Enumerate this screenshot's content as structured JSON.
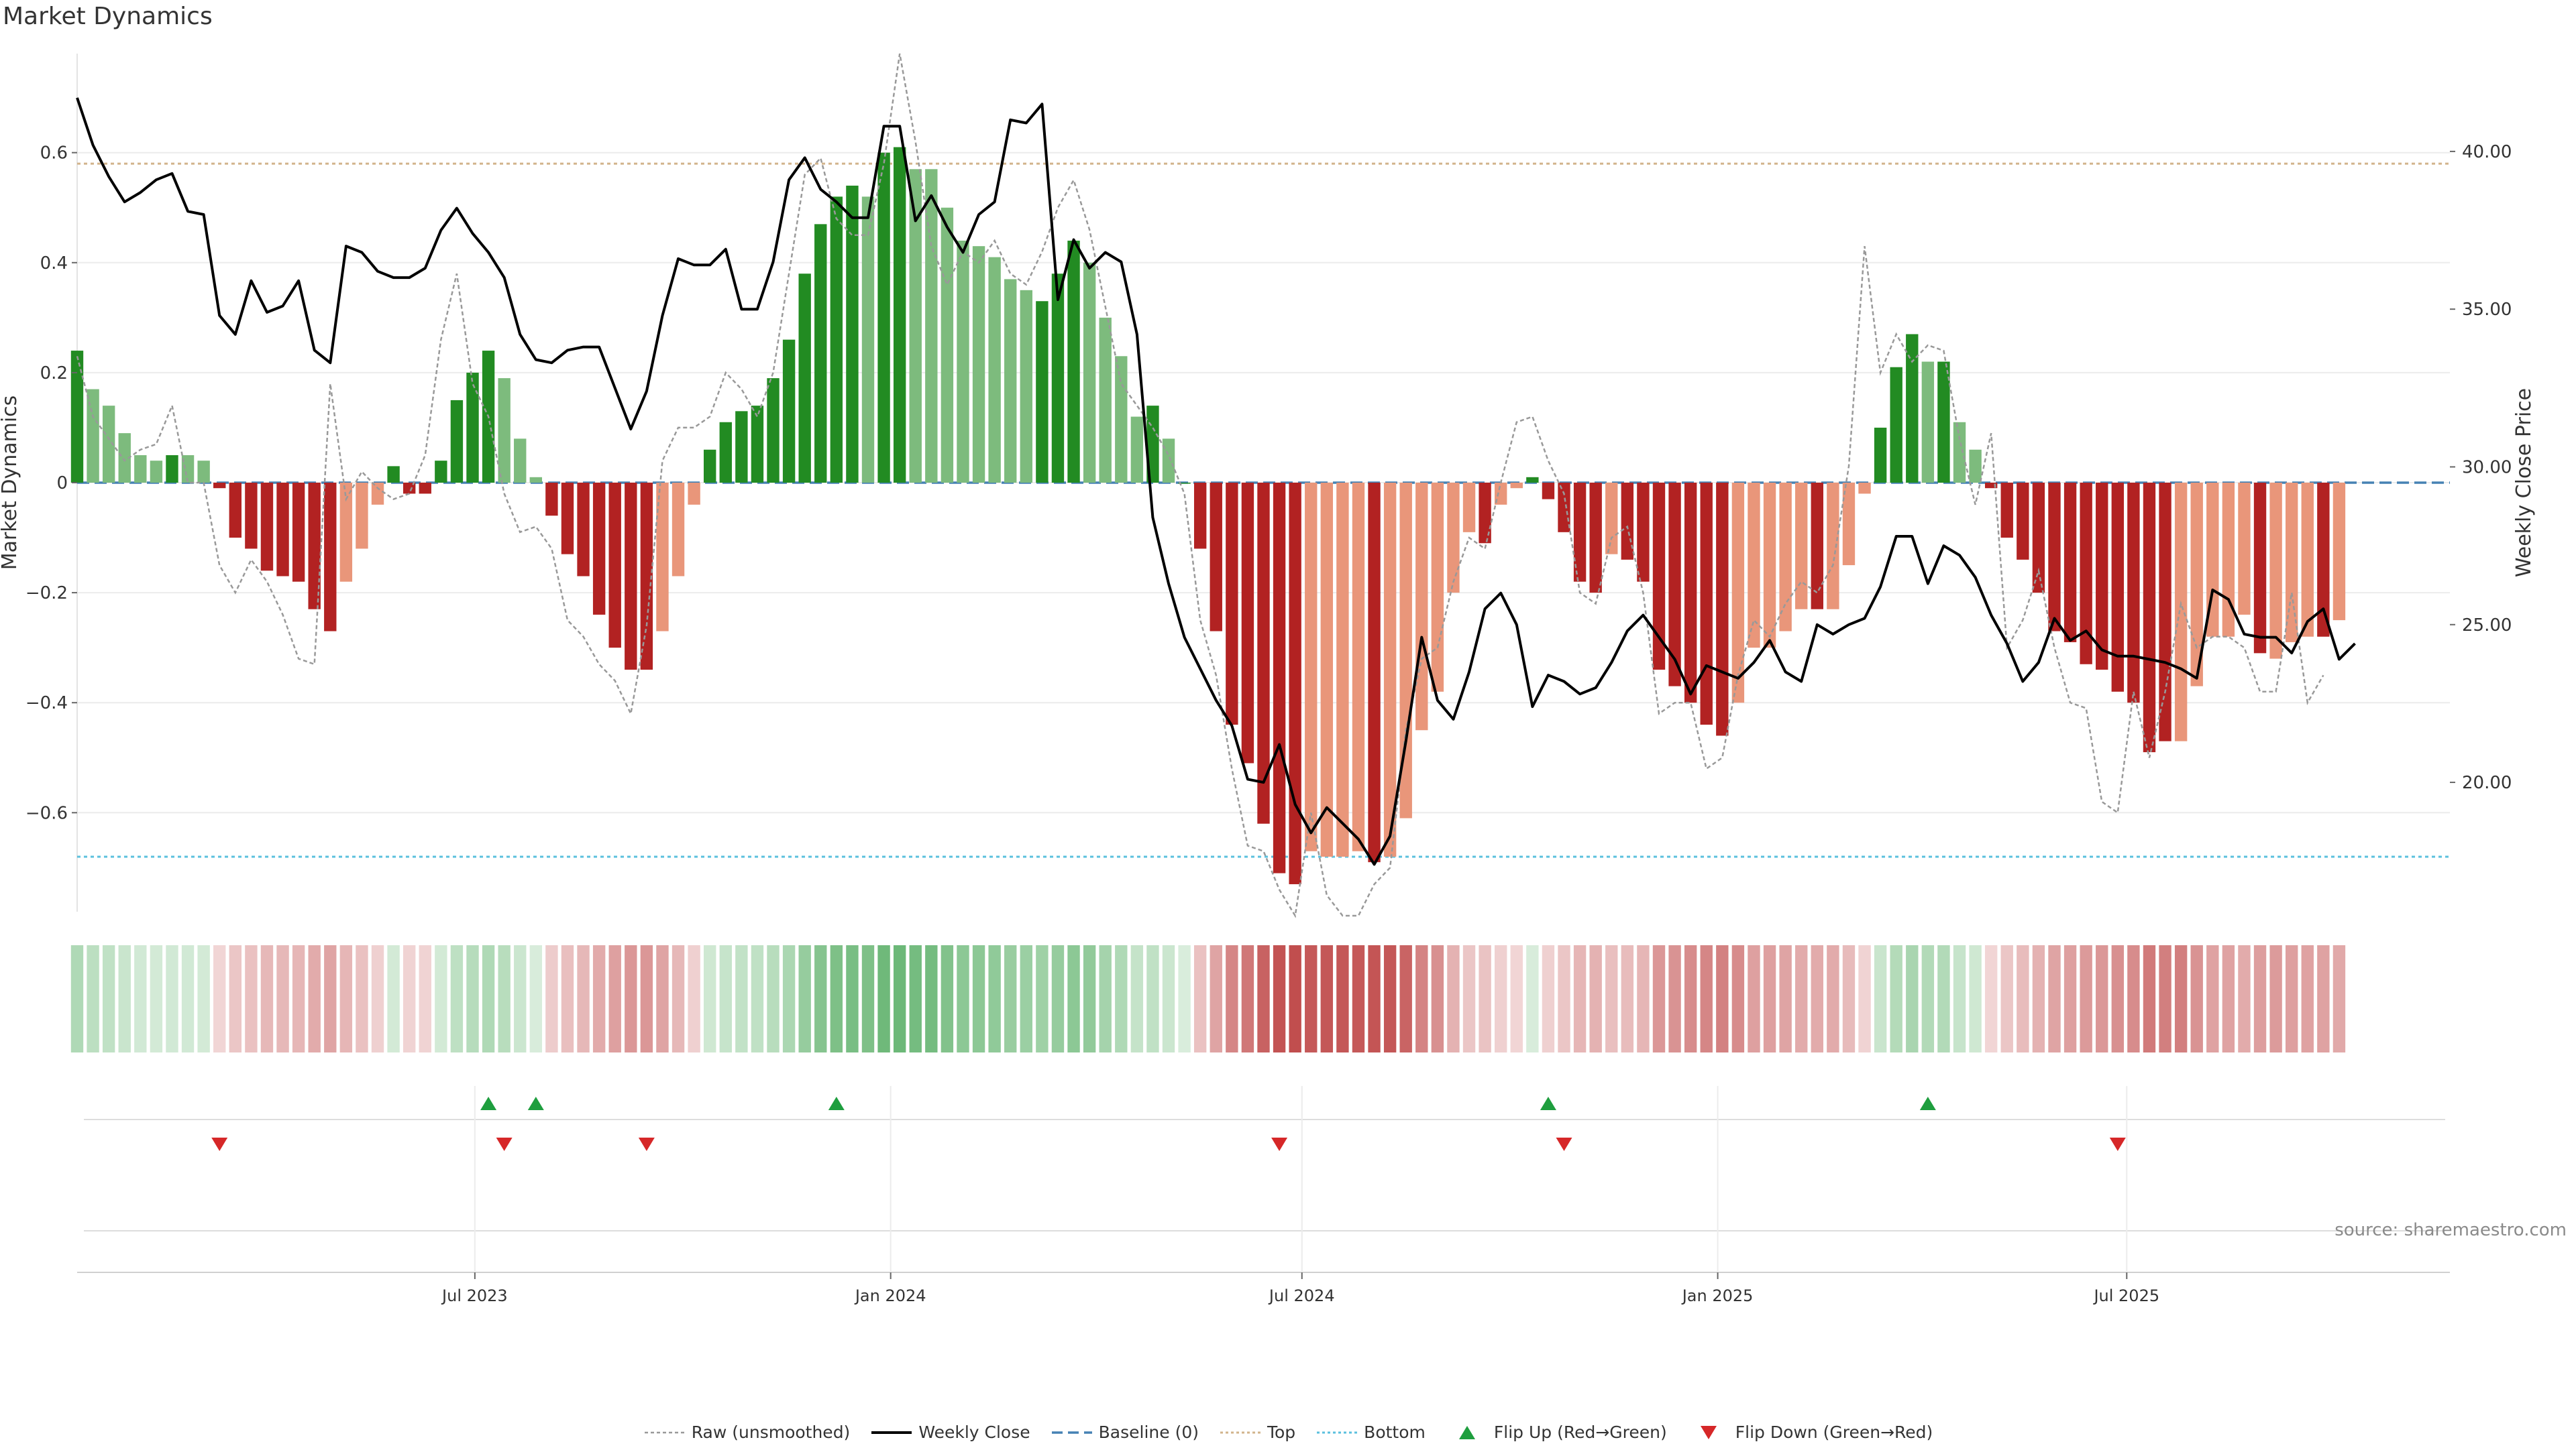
{
  "title": "Market Dynamics",
  "source": "source: sharemaestro.com",
  "chart_data": {
    "type": "bar",
    "title": "Market Dynamics",
    "ylabel": "Market Dynamics",
    "y2label": "Weekly Close Price",
    "ylim": [
      -0.78,
      0.78
    ],
    "y2lim": [
      15.9,
      43.1
    ],
    "yticks": [
      -0.6,
      -0.4,
      -0.2,
      0,
      0.2,
      0.4,
      0.6
    ],
    "ytick_labels": [
      "−0.6",
      "−0.4",
      "−0.2",
      "0",
      "0.2",
      "0.4",
      "0.6"
    ],
    "y2ticks": [
      20,
      25,
      30,
      35,
      40
    ],
    "y2tick_labels": [
      "20.00",
      "25.00",
      "30.00",
      "35.00",
      "40.00"
    ],
    "xlim": [
      "2023-01-06",
      "2025-11-21"
    ],
    "xticks": [
      "2023-07-01",
      "2024-01-01",
      "2024-07-01",
      "2025-01-01",
      "2025-07-01"
    ],
    "xtick_labels": [
      "Jul 2023",
      "Jan 2024",
      "Jul 2024",
      "Jan 2025",
      "Jul 2025"
    ],
    "grid": true,
    "legend_position": "bottom-center",
    "colors": {
      "strong_up": "#228b22",
      "weak_up": "#7dbb7d",
      "strong_down": "#b22222",
      "weak_down": "#e9967a",
      "raw": "#999999",
      "close": "#000000",
      "baseline": "#4682b4",
      "top": "#d2b48c",
      "bottom": "#5bc0de",
      "flip_up": "#1e9e3e",
      "flip_down": "#d62728"
    },
    "reference_lines": {
      "baseline": 0,
      "top": 0.58,
      "bottom": -0.68
    },
    "start_date": "2023-01-06",
    "interval_days": 7,
    "values": [
      0.24,
      0.17,
      0.14,
      0.09,
      0.05,
      0.04,
      0.05,
      0.05,
      0.04,
      -0.01,
      -0.1,
      -0.12,
      -0.16,
      -0.17,
      -0.18,
      -0.23,
      -0.27,
      -0.18,
      -0.12,
      -0.04,
      0.03,
      -0.02,
      -0.02,
      0.04,
      0.15,
      0.2,
      0.24,
      0.19,
      0.08,
      0.01,
      -0.06,
      -0.13,
      -0.17,
      -0.24,
      -0.3,
      -0.34,
      -0.34,
      -0.27,
      -0.17,
      -0.04,
      0.06,
      0.11,
      0.13,
      0.14,
      0.19,
      0.26,
      0.38,
      0.47,
      0.52,
      0.54,
      0.52,
      0.6,
      0.61,
      0.57,
      0.57,
      0.5,
      0.44,
      0.43,
      0.41,
      0.37,
      0.35,
      0.33,
      0.38,
      0.44,
      0.4,
      0.3,
      0.23,
      0.12,
      0.14,
      0.08,
      0,
      -0.12,
      -0.27,
      -0.44,
      -0.51,
      -0.62,
      -0.71,
      -0.73,
      -0.67,
      -0.68,
      -0.68,
      -0.67,
      -0.69,
      -0.68,
      -0.61,
      -0.45,
      -0.38,
      -0.2,
      -0.09,
      -0.11,
      -0.04,
      -0.01,
      0.01,
      -0.03,
      -0.09,
      -0.18,
      -0.2,
      -0.13,
      -0.14,
      -0.18,
      -0.34,
      -0.37,
      -0.4,
      -0.44,
      -0.46,
      -0.4,
      -0.3,
      -0.3,
      -0.27,
      -0.23,
      -0.23,
      -0.23,
      -0.15,
      -0.02,
      0.1,
      0.21,
      0.27,
      0.22,
      0.22,
      0.11,
      0.06,
      -0.01,
      -0.1,
      -0.14,
      -0.2,
      -0.27,
      -0.29,
      -0.33,
      -0.34,
      -0.38,
      -0.4,
      -0.49,
      -0.47,
      -0.47,
      -0.37,
      -0.28,
      -0.28,
      -0.24,
      -0.31,
      -0.32,
      -0.29,
      -0.28,
      -0.28,
      -0.25
    ],
    "bar_colors": [
      "s",
      "w",
      "w",
      "w",
      "w",
      "w",
      "s",
      "w",
      "w",
      "s",
      "s",
      "s",
      "s",
      "s",
      "s",
      "s",
      "s",
      "w",
      "w",
      "w",
      "s",
      "s",
      "s",
      "s",
      "s",
      "s",
      "s",
      "w",
      "w",
      "w",
      "s",
      "s",
      "s",
      "s",
      "s",
      "s",
      "s",
      "w",
      "w",
      "w",
      "s",
      "s",
      "s",
      "s",
      "s",
      "s",
      "s",
      "s",
      "s",
      "s",
      "w",
      "s",
      "s",
      "w",
      "w",
      "w",
      "w",
      "w",
      "w",
      "w",
      "w",
      "s",
      "s",
      "s",
      "w",
      "w",
      "w",
      "w",
      "s",
      "w",
      "s",
      "s",
      "s",
      "s",
      "s",
      "s",
      "s",
      "s",
      "w",
      "w",
      "w",
      "w",
      "s",
      "w",
      "w",
      "w",
      "w",
      "w",
      "w",
      "s",
      "w",
      "w",
      "s",
      "s",
      "s",
      "s",
      "s",
      "w",
      "s",
      "s",
      "s",
      "s",
      "s",
      "s",
      "s",
      "w",
      "w",
      "w",
      "w",
      "w",
      "s",
      "w",
      "w",
      "w",
      "s",
      "s",
      "s",
      "w",
      "s",
      "w",
      "w",
      "s",
      "s",
      "s",
      "s",
      "s",
      "s",
      "s",
      "s",
      "s",
      "s",
      "s",
      "s",
      "w",
      "w",
      "w",
      "w",
      "w",
      "s",
      "w",
      "w",
      "w",
      "s",
      "w"
    ],
    "series": [
      {
        "name": "Raw (unsmoothed)",
        "values": [
          0.23,
          0.12,
          0.08,
          0.04,
          0.06,
          0.07,
          0.14,
          0,
          0,
          -0.15,
          -0.2,
          -0.14,
          -0.18,
          -0.24,
          -0.32,
          -0.33,
          0.18,
          -0.03,
          0.02,
          -0.01,
          -0.03,
          -0.02,
          0.05,
          0.26,
          0.38,
          0.18,
          0.12,
          -0.02,
          -0.09,
          -0.08,
          -0.12,
          -0.25,
          -0.28,
          -0.33,
          -0.36,
          -0.42,
          -0.26,
          0.04,
          0.1,
          0.1,
          0.12,
          0.2,
          0.17,
          0.12,
          0.2,
          0.38,
          0.56,
          0.59,
          0.48,
          0.45,
          0.45,
          0.58,
          0.78,
          0.62,
          0.43,
          0.36,
          0.42,
          0.4,
          0.44,
          0.38,
          0.36,
          0.42,
          0.5,
          0.55,
          0.46,
          0.32,
          0.18,
          0.14,
          0.1,
          0.05,
          -0.02,
          -0.25,
          -0.35,
          -0.52,
          -0.66,
          -0.67,
          -0.74,
          -0.84,
          -0.6,
          -0.75,
          -0.85,
          -0.8,
          -0.73,
          -0.7,
          -0.45,
          -0.32,
          -0.3,
          -0.18,
          -0.1,
          -0.12,
          0,
          0.11,
          0.12,
          0.04,
          -0.02,
          -0.2,
          -0.22,
          -0.1,
          -0.08,
          -0.2,
          -0.42,
          -0.4,
          -0.4,
          -0.52,
          -0.5,
          -0.35,
          -0.25,
          -0.28,
          -0.22,
          -0.18,
          -0.2,
          -0.15,
          0.03,
          0.43,
          0.2,
          0.27,
          0.22,
          0.25,
          0.24,
          0.08,
          -0.04,
          0.09,
          -0.3,
          -0.25,
          -0.16,
          -0.3,
          -0.4,
          -0.41,
          -0.58,
          -0.6,
          -0.38,
          -0.5,
          -0.38,
          -0.22,
          -0.3,
          -0.28,
          -0.28,
          -0.3,
          -0.38,
          -0.38,
          -0.2,
          -0.4,
          -0.35
        ]
      },
      {
        "name": "Weekly Close",
        "axis": "right",
        "values": [
          41.7,
          40.2,
          39.2,
          38.4,
          38.7,
          39.1,
          39.3,
          38.1,
          38.0,
          34.8,
          34.2,
          35.9,
          34.9,
          35.1,
          35.9,
          33.7,
          33.3,
          37.0,
          36.8,
          36.2,
          36.0,
          36.0,
          36.3,
          37.5,
          38.2,
          37.4,
          36.8,
          36.0,
          34.2,
          33.4,
          33.3,
          33.7,
          33.8,
          33.8,
          32.5,
          31.2,
          32.4,
          34.8,
          36.6,
          36.4,
          36.4,
          36.9,
          35.0,
          35.0,
          36.5,
          39.1,
          39.8,
          38.8,
          38.4,
          37.9,
          37.9,
          40.8,
          40.8,
          37.8,
          38.6,
          37.6,
          36.8,
          38.0,
          38.4,
          41.0,
          40.9,
          41.5,
          35.3,
          37.2,
          36.3,
          36.8,
          36.5,
          34.2,
          28.4,
          26.3,
          24.6,
          23.6,
          22.6,
          21.8,
          20.1,
          20.0,
          21.2,
          19.3,
          18.4,
          19.2,
          18.7,
          18.2,
          17.4,
          18.3,
          21.3,
          24.6,
          22.6,
          22.0,
          23.5,
          25.5,
          26.0,
          25.0,
          22.4,
          23.4,
          23.2,
          22.8,
          23.0,
          23.8,
          24.8,
          25.3,
          24.6,
          23.9,
          22.8,
          23.7,
          23.5,
          23.3,
          23.8,
          24.5,
          23.5,
          23.2,
          25.0,
          24.7,
          25.0,
          25.2,
          26.2,
          27.8,
          27.8,
          26.3,
          27.5,
          27.2,
          26.5,
          25.3,
          24.4,
          23.2,
          23.8,
          25.2,
          24.5,
          24.8,
          24.2,
          24.0,
          24.0,
          23.9,
          23.8,
          23.6,
          23.3,
          26.1,
          25.8,
          24.7,
          24.6,
          24.6,
          24.1,
          25.1,
          25.5,
          23.9,
          24.4
        ]
      },
      {
        "name": "Baseline (0)"
      },
      {
        "name": "Top"
      },
      {
        "name": "Bottom"
      }
    ],
    "flip_up_dates": [
      "2023-07-07",
      "2023-07-28",
      "2023-12-08",
      "2024-10-18",
      "2025-04-04"
    ],
    "flip_down_dates": [
      "2023-03-10",
      "2023-07-14",
      "2023-09-15",
      "2024-06-21",
      "2024-10-25",
      "2025-06-27"
    ],
    "legend": [
      "Raw (unsmoothed)",
      "Weekly Close",
      "Baseline (0)",
      "Top",
      "Bottom",
      "Flip Up (Red→Green)",
      "Flip Down (Green→Red)"
    ]
  }
}
